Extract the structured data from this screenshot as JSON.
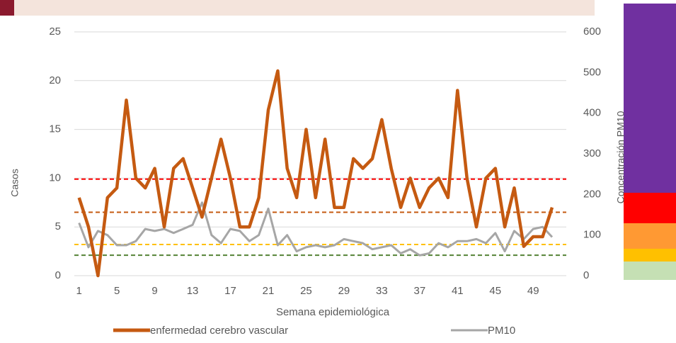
{
  "chart_data": {
    "type": "line",
    "x_label": "Semana epidemiológica",
    "y_label": "Casos",
    "y2_label": "Concentración PM10",
    "categories": [
      "1",
      null,
      null,
      null,
      "5",
      null,
      null,
      null,
      "9",
      null,
      null,
      null,
      "13",
      null,
      null,
      null,
      "17",
      null,
      null,
      null,
      "21",
      null,
      null,
      null,
      "25",
      null,
      null,
      null,
      "29",
      null,
      null,
      null,
      "33",
      null,
      null,
      null,
      "37",
      null,
      null,
      null,
      "41",
      null,
      null,
      null,
      "45",
      null,
      null,
      null,
      "49",
      null,
      null,
      null
    ],
    "series": [
      {
        "name": "enfermedad cerebro vascular",
        "color": "#c55a11",
        "axis": "y",
        "values": [
          8,
          5,
          0,
          8,
          9,
          18,
          10,
          9,
          11,
          5,
          11,
          12,
          9,
          6,
          10,
          14,
          10,
          5,
          5,
          8,
          17,
          21,
          11,
          8,
          15,
          8,
          14,
          7,
          7,
          12,
          11,
          12,
          16,
          11,
          7,
          10,
          7,
          9,
          10,
          8,
          19,
          10,
          5,
          10,
          11,
          5,
          9,
          3,
          4,
          4,
          7,
          null
        ]
      },
      {
        "name": "PM10",
        "color": "#a6a6a6",
        "axis": "y2",
        "values": [
          130,
          70,
          110,
          100,
          75,
          75,
          85,
          115,
          110,
          115,
          105,
          115,
          125,
          180,
          100,
          80,
          115,
          110,
          85,
          100,
          165,
          75,
          100,
          60,
          70,
          75,
          70,
          75,
          90,
          85,
          80,
          65,
          70,
          75,
          55,
          65,
          50,
          55,
          80,
          70,
          85,
          85,
          90,
          80,
          105,
          60,
          110,
          90,
          115,
          120,
          95,
          null
        ]
      }
    ],
    "reference_lines": [
      {
        "value": 9.9,
        "color": "#ff0000"
      },
      {
        "value": 6.5,
        "color": "#c55a11"
      },
      {
        "value": 3.2,
        "color": "#ffc000"
      },
      {
        "value": 2.1,
        "color": "#548235"
      }
    ],
    "ylim": [
      0,
      25
    ],
    "yticks": [
      0,
      5,
      10,
      15,
      20,
      25
    ],
    "y2lim": [
      0,
      600
    ],
    "y2ticks": [
      0,
      100,
      200,
      300,
      400,
      500,
      600
    ],
    "grid": true
  }
}
